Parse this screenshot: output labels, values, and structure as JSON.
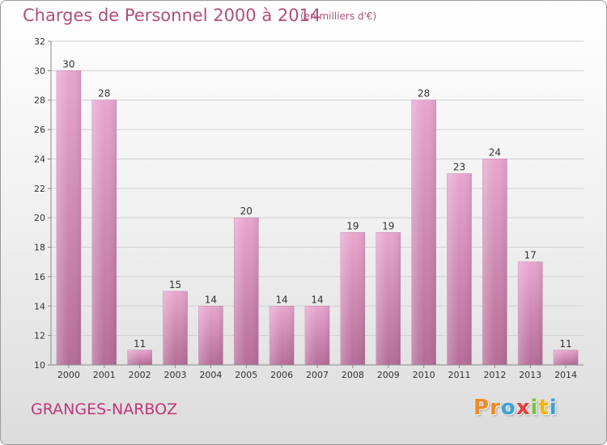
{
  "header": {
    "title": "Charges de Personnel 2000 à 2014",
    "subtitle": "(en milliers d'€)"
  },
  "footer": {
    "commune": "GRANGES-NARBOZ",
    "logo_letters": [
      "P",
      "r",
      "o",
      "x",
      "i",
      "t",
      "i"
    ],
    "logo_colors": [
      "#f08a24",
      "#f08a24",
      "#3aa0d8",
      "#e83c3c",
      "#7cc243",
      "#f5b400",
      "#3aa0d8"
    ]
  },
  "colors": {
    "bar_light": "#e8a6cf",
    "bar_dark": "#b56d98",
    "text": "#333333",
    "title": "#b0507a"
  },
  "chart_data": {
    "type": "bar",
    "categories": [
      "2000",
      "2001",
      "2002",
      "2003",
      "2004",
      "2005",
      "2006",
      "2007",
      "2008",
      "2009",
      "2010",
      "2011",
      "2012",
      "2013",
      "2014"
    ],
    "values": [
      30,
      28,
      11,
      15,
      14,
      20,
      14,
      14,
      19,
      19,
      28,
      23,
      24,
      17,
      11
    ],
    "title": "Charges de Personnel 2000 à 2014",
    "ylim": [
      10,
      32
    ],
    "yticks": [
      10,
      12,
      14,
      16,
      18,
      20,
      22,
      24,
      26,
      28,
      30,
      32
    ],
    "grid": true,
    "data_labels": true
  }
}
